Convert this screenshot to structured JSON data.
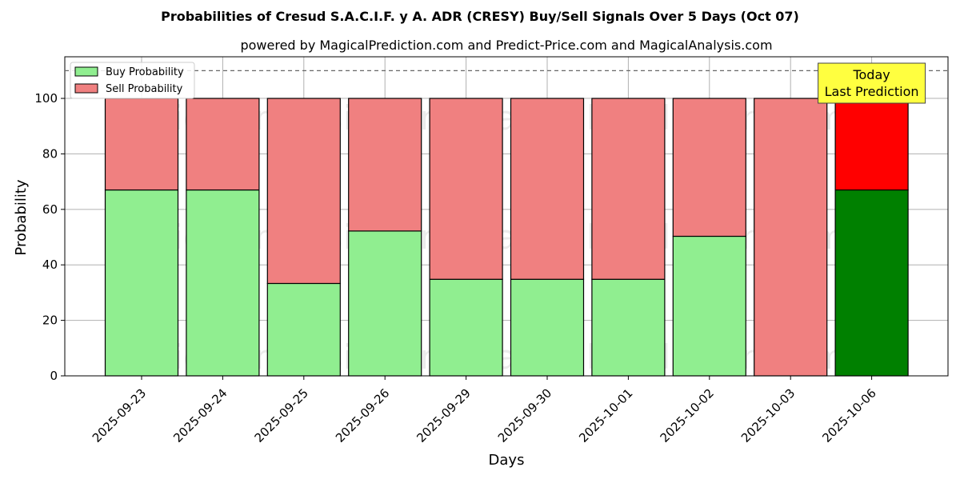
{
  "chart_data": {
    "type": "bar",
    "stacked": true,
    "title": "Probabilities of Cresud S.A.C.I.F. y A. ADR (CRESY) Buy/Sell Signals Over 5 Days (Oct 07)",
    "subtitle": "powered by MagicalPrediction.com and Predict-Price.com and MagicalAnalysis.com",
    "xlabel": "Days",
    "ylabel": "Probability",
    "ylim": [
      0,
      115
    ],
    "yticks": [
      0,
      20,
      40,
      60,
      80,
      100
    ],
    "grid": true,
    "legend_position": "top-left",
    "reference_line": 110,
    "categories": [
      "2025-09-23",
      "2025-09-24",
      "2025-09-25",
      "2025-09-26",
      "2025-09-29",
      "2025-09-30",
      "2025-10-01",
      "2025-10-02",
      "2025-10-03",
      "2025-10-06"
    ],
    "series": [
      {
        "name": "Buy Probability",
        "values": [
          67,
          67,
          33.3,
          52.2,
          34.8,
          34.8,
          34.8,
          50.3,
          0,
          67
        ],
        "color": "#90ee90",
        "highlight_color": "#008000"
      },
      {
        "name": "Sell Probability",
        "values": [
          33,
          33,
          66.7,
          47.8,
          65.2,
          65.2,
          65.2,
          49.7,
          100,
          33
        ],
        "color": "#f08080",
        "highlight_color": "#ff0000"
      }
    ],
    "highlight_index": 9,
    "annotation": {
      "lines": [
        "Today",
        "Last Prediction"
      ],
      "color": "#ffff40"
    },
    "watermarks": [
      "MagicalAnalysis.com",
      "MagicalPrediction.com"
    ]
  }
}
